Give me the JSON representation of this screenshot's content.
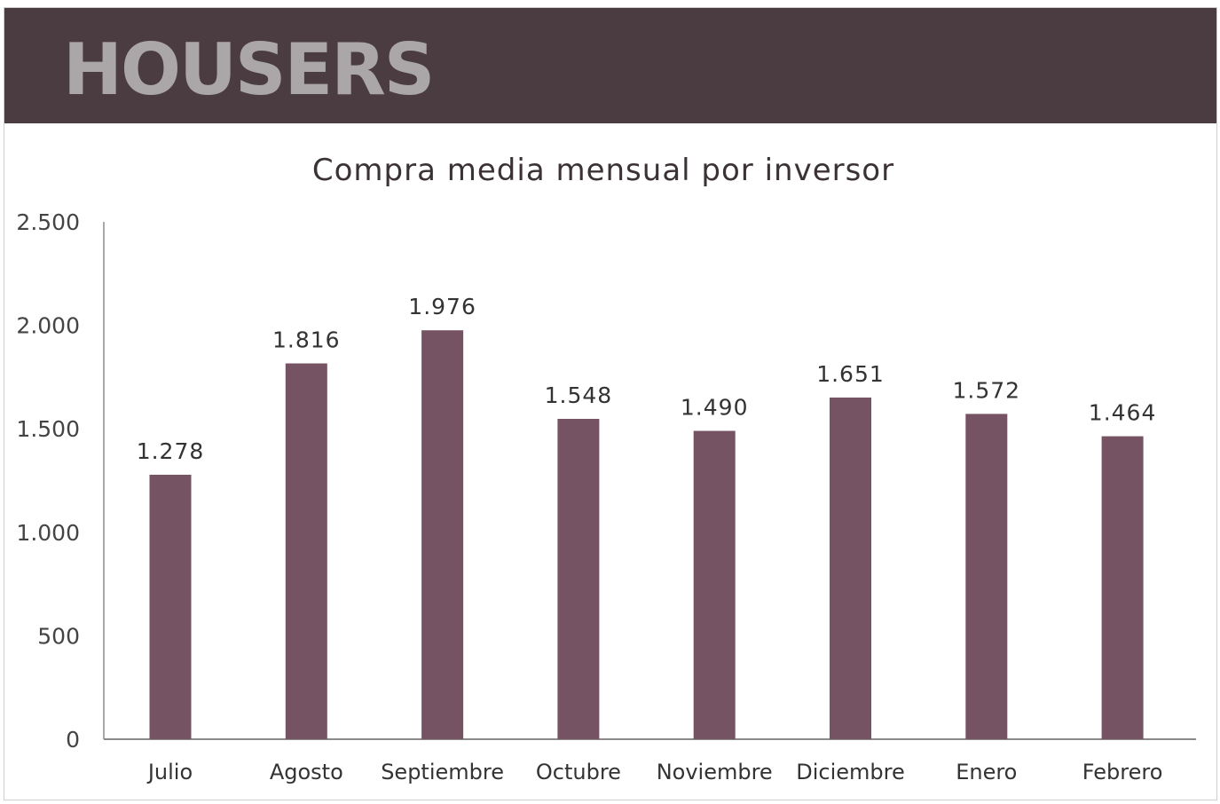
{
  "header": {
    "logo_text": "HOUSERS",
    "background_color": "#4a3c41",
    "logo_color": "#aba6a8"
  },
  "chart_data": {
    "type": "bar",
    "title": "Compra media mensual por inversor",
    "xlabel": "",
    "ylabel": "",
    "categories": [
      "Julio",
      "Agosto",
      "Septiembre",
      "Octubre",
      "Noviembre",
      "Diciembre",
      "Enero",
      "Febrero"
    ],
    "values": [
      1278,
      1816,
      1976,
      1548,
      1490,
      1651,
      1572,
      1464
    ],
    "value_labels": [
      "1.278",
      "1.816",
      "1.976",
      "1.548",
      "1.490",
      "1.651",
      "1.572",
      "1.464"
    ],
    "ylim": [
      0,
      2500
    ],
    "yticks": [
      0,
      500,
      1000,
      1500,
      2000,
      2500
    ],
    "ytick_labels": [
      "0",
      "500",
      "1.000",
      "1.500",
      "2.000",
      "2.500"
    ],
    "grid": false,
    "legend": "none",
    "bar_color": "#765363"
  }
}
